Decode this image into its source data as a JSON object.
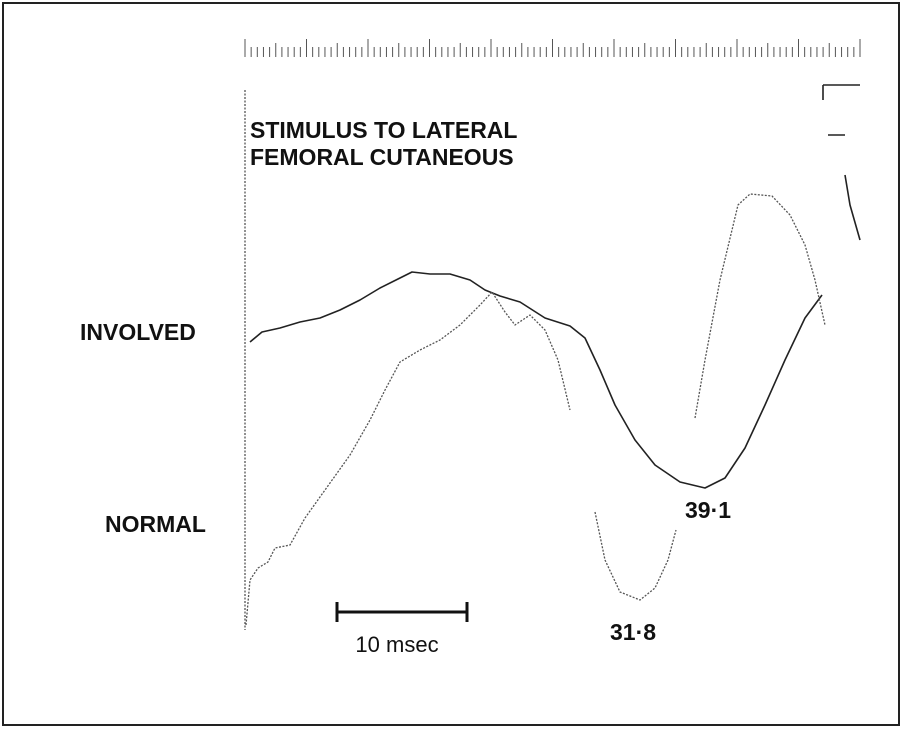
{
  "figure": {
    "stimulus": [
      "STIMULUS TO LATERAL",
      "FEMORAL CUTANEOUS"
    ],
    "traces": [
      {
        "label": "INVOLVED",
        "peak": "39·1"
      },
      {
        "label": "NORMAL",
        "peak": "31·8"
      }
    ],
    "scale_bar": "10 msec"
  }
}
